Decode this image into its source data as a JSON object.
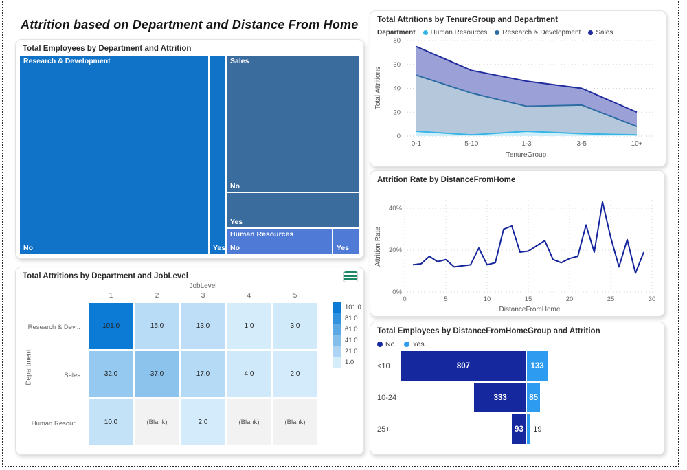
{
  "page": {
    "title": "Attrition based on Department and Distance From Home"
  },
  "chart_data": [
    {
      "id": "treemap",
      "type": "treemap",
      "title": "Total Employees by Department and Attrition",
      "labels": {
        "no": "No",
        "yes": "Yes"
      },
      "groups": [
        {
          "department": "Research & Development",
          "color": "#1173C8",
          "segments": [
            {
              "attrition": "No",
              "area_share_pct": 56.4
            },
            {
              "attrition": "Yes",
              "area_share_pct": 4.7
            }
          ]
        },
        {
          "department": "Sales",
          "color": "#3B6C9E",
          "segments": [
            {
              "attrition": "No",
              "area_share_pct": 26.8
            },
            {
              "attrition": "Yes",
              "area_share_pct": 7.0
            }
          ]
        },
        {
          "department": "Human Resources",
          "color": "#4F7AD5",
          "segments": [
            {
              "attrition": "No",
              "area_share_pct": 4.2
            },
            {
              "attrition": "Yes",
              "area_share_pct": 0.9
            }
          ]
        }
      ]
    },
    {
      "id": "area",
      "type": "area",
      "stacked": true,
      "title": "Total Attritions by TenureGroup and Department",
      "legend_title": "Department",
      "legend_position": "top",
      "categories": [
        "0-1",
        "5-10",
        "1-3",
        "3-5",
        "10+"
      ],
      "series": [
        {
          "name": "Human Resources",
          "color": "#35B5E5",
          "fill": "#CFEFFA",
          "values": [
            4,
            1,
            4,
            2,
            1
          ]
        },
        {
          "name": "Research & Development",
          "color": "#2E6DA4",
          "fill": "#B5C7DB",
          "values": [
            47,
            35,
            21,
            24,
            7
          ]
        },
        {
          "name": "Sales",
          "color": "#202C9E",
          "fill": "#9BA0D6",
          "values": [
            24,
            19,
            21,
            14,
            12
          ]
        }
      ],
      "stacked_totals": [
        75,
        55,
        46,
        40,
        20
      ],
      "xlabel": "TenureGroup",
      "ylabel": "Total Attritions",
      "yticks": [
        0,
        20,
        40,
        60,
        80
      ],
      "ylim": [
        0,
        80
      ],
      "grid": "horizontal-dotted"
    },
    {
      "id": "line",
      "type": "line",
      "title": "Attrition Rate by DistanceFromHome",
      "xlabel": "DistanceFromHome",
      "ylabel": "Attrition Rate",
      "color": "#14249B",
      "x": [
        1,
        2,
        3,
        4,
        5,
        6,
        7,
        8,
        9,
        10,
        11,
        12,
        13,
        14,
        15,
        16,
        17,
        18,
        19,
        20,
        21,
        22,
        23,
        24,
        25,
        26,
        27,
        28,
        29
      ],
      "y_pct": [
        13,
        13.5,
        17,
        14.5,
        15.5,
        12,
        12.5,
        13,
        21,
        13,
        14,
        30,
        31.5,
        19,
        19.5,
        22,
        24.5,
        15.5,
        14,
        16,
        17,
        32,
        19,
        43,
        26,
        12,
        25,
        9,
        19
      ],
      "xticks": [
        0,
        5,
        10,
        15,
        20,
        25,
        30
      ],
      "ytick_values": [
        0,
        20,
        40
      ],
      "ytick_labels": [
        "0%",
        "20%",
        "40%"
      ],
      "xlim": [
        0,
        30
      ],
      "ylim_pct": [
        0,
        45
      ],
      "grid": "both-dotted"
    },
    {
      "id": "heatmap",
      "type": "heatmap",
      "title": "Total Attritions by Department and JobLevel",
      "xlabel": "JobLevel",
      "ylabel": "Department",
      "columns": [
        "1",
        "2",
        "3",
        "4",
        "5"
      ],
      "rows": [
        {
          "label": "Research & Dev...",
          "values": [
            101,
            15,
            13,
            1,
            3
          ]
        },
        {
          "label": "Sales",
          "values": [
            32,
            37,
            17,
            4,
            2
          ]
        },
        {
          "label": "Human Resour...",
          "values": [
            10,
            null,
            2,
            null,
            null
          ]
        }
      ],
      "blank_text": "(Blank)",
      "blank_color": "#F2F2F2",
      "legend_values": [
        101,
        81,
        61,
        41,
        21,
        1
      ],
      "color_min": "#D5ECFB",
      "color_max": "#0B7BD5",
      "icon": {
        "name": "table-icon",
        "color": "#1B8765"
      }
    },
    {
      "id": "tornado",
      "type": "tornado",
      "title": "Total Employees by DistanceFromHomeGroup and Attrition",
      "categories": [
        "<10",
        "10-24",
        "25+"
      ],
      "series": [
        {
          "name": "No",
          "color": "#16289E",
          "values": [
            807,
            333,
            93
          ]
        },
        {
          "name": "Yes",
          "color": "#2D9BF0",
          "values": [
            133,
            85,
            19
          ]
        }
      ]
    }
  ]
}
